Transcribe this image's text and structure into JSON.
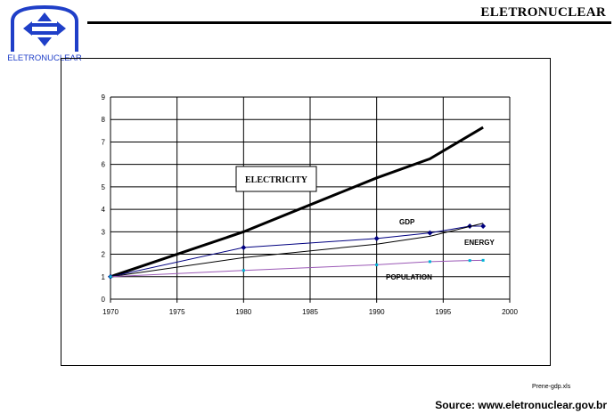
{
  "header": {
    "brand": "ELETRONUCLEAR",
    "logo_text": "ELETRONUCLEAR",
    "rule_color": "#000000",
    "logo_color": "#1f3fc8"
  },
  "footer": {
    "file_note": "Prene-gdp.xls",
    "source": "Source: www.eletronuclear.gov.br"
  },
  "chart_data": {
    "type": "line",
    "title": "",
    "xlabel": "",
    "ylabel": "",
    "xlim": [
      1970,
      2000
    ],
    "ylim": [
      0,
      9
    ],
    "x_ticks": [
      1970,
      1975,
      1980,
      1985,
      1990,
      1995,
      2000
    ],
    "y_ticks": [
      0,
      1,
      2,
      3,
      4,
      5,
      6,
      7,
      8,
      9
    ],
    "grid": true,
    "series": [
      {
        "name": "ELECTRICITY",
        "color": "#000000",
        "width": 3,
        "marker": "none",
        "x": [
          1970,
          1980,
          1990,
          1994,
          1998
        ],
        "y": [
          1.0,
          3.0,
          5.4,
          6.25,
          7.65
        ]
      },
      {
        "name": "GDP",
        "color": "#000080",
        "width": 1,
        "marker": "diamond",
        "x": [
          1970,
          1980,
          1990,
          1994,
          1997,
          1998
        ],
        "y": [
          1.0,
          2.3,
          2.7,
          2.95,
          3.25,
          3.25
        ]
      },
      {
        "name": "ENERGY",
        "color": "#000000",
        "width": 1,
        "marker": "none",
        "x": [
          1970,
          1980,
          1990,
          1994,
          1998
        ],
        "y": [
          1.0,
          1.85,
          2.45,
          2.8,
          3.38
        ]
      },
      {
        "name": "POPULATION",
        "color": "#9b59b6",
        "width": 1,
        "marker": "square",
        "marker_color": "#00b4d8",
        "x": [
          1970,
          1980,
          1990,
          1994,
          1997,
          1998
        ],
        "y": [
          1.0,
          1.28,
          1.53,
          1.67,
          1.72,
          1.73
        ]
      }
    ],
    "annotations": [
      {
        "text": "ELECTRICITY",
        "boxed": true
      },
      {
        "text": "GDP",
        "boxed": false
      },
      {
        "text": "ENERGY",
        "boxed": false
      },
      {
        "text": "POPULATION",
        "boxed": false
      }
    ]
  }
}
